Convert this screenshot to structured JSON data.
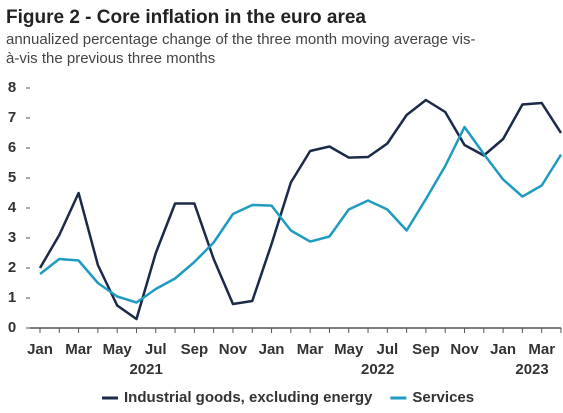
{
  "chart_data": {
    "type": "line",
    "title": "Figure 2 - Core inflation in the euro area",
    "subtitle": "annualized percentage change of the three month moving average vis-à-vis the previous three months",
    "categories": [
      "Jan",
      null,
      "Mar",
      null,
      "May",
      null,
      "Jul",
      null,
      "Sep",
      null,
      "Nov",
      null,
      "Jan",
      null,
      "Mar",
      null,
      "May",
      null,
      "Jul",
      null,
      "Sep",
      null,
      "Nov",
      null,
      "Jan",
      null,
      "Mar",
      null
    ],
    "x_groups": [
      "2021",
      "2022",
      "2023"
    ],
    "series": [
      {
        "name": "Industrial goods, excluding energy",
        "color": "#1b2a48",
        "values": [
          2.0,
          3.1,
          4.5,
          2.1,
          0.75,
          0.3,
          2.5,
          4.15,
          4.15,
          2.3,
          0.8,
          0.9,
          2.8,
          4.85,
          5.9,
          6.05,
          5.68,
          5.7,
          6.15,
          7.1,
          7.6,
          7.2,
          6.1,
          5.75,
          6.3,
          7.45,
          7.5,
          6.5
        ]
      },
      {
        "name": "Services",
        "color": "#1f9bc1",
        "values": [
          1.8,
          2.3,
          2.25,
          1.5,
          1.05,
          0.85,
          1.3,
          1.65,
          2.2,
          2.85,
          3.8,
          4.1,
          4.08,
          3.25,
          2.88,
          3.05,
          3.95,
          4.25,
          3.95,
          3.25,
          4.3,
          5.4,
          6.7,
          5.8,
          4.95,
          4.38,
          4.75,
          5.78
        ]
      }
    ],
    "ylim": [
      0,
      8
    ],
    "yticks": [
      0,
      1,
      2,
      3,
      4,
      5,
      6,
      7,
      8
    ],
    "grid": false,
    "legend": "bottom"
  }
}
